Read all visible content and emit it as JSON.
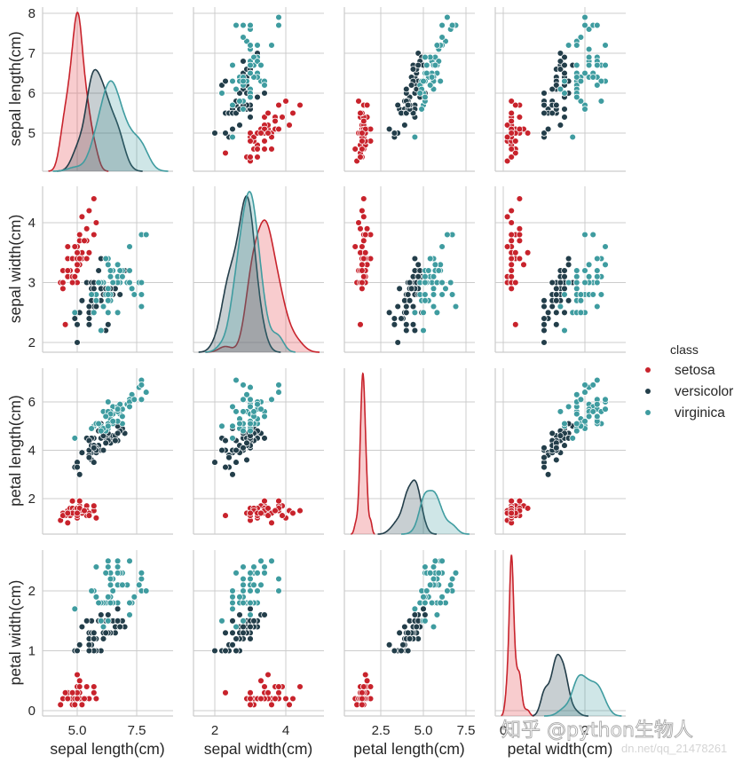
{
  "chart_data": {
    "type": "scatter",
    "subtype": "pairplot",
    "title": "",
    "variables": [
      "sepal length(cm)",
      "sepal width(cm)",
      "petal length(cm)",
      "petal width(cm)"
    ],
    "diagonal": "kde",
    "hue": "class",
    "legend": {
      "title": "class",
      "placement": "right",
      "entries": [
        {
          "name": "setosa",
          "color": "#c8232c"
        },
        {
          "name": "versicolor",
          "color": "#233e4a"
        },
        {
          "name": "virginica",
          "color": "#3f9ca0"
        }
      ]
    },
    "axes": [
      {
        "name": "sepal length(cm)",
        "range": [
          4.05,
          8.25
        ],
        "ticks_x": [
          5.0,
          7.5
        ],
        "tick_labels_x": [
          "5.0",
          "7.5"
        ],
        "ticks_y": [
          5,
          6,
          7,
          8
        ],
        "tick_labels_y": [
          "5",
          "6",
          "7",
          "8"
        ]
      },
      {
        "name": "sepal width(cm)",
        "range": [
          1.8,
          4.6
        ],
        "ticks_x": [
          2,
          4
        ],
        "tick_labels_x": [
          "2",
          "4"
        ],
        "ticks_y": [
          2,
          3,
          4
        ],
        "tick_labels_y": [
          "2",
          "3",
          "4"
        ]
      },
      {
        "name": "petal length(cm)",
        "range": [
          0.6,
          7.3
        ],
        "ticks_x": [
          2.5,
          5.0,
          7.5
        ],
        "tick_labels_x": [
          "2.5",
          "5.0",
          "7.5"
        ],
        "ticks_y": [
          2,
          4,
          6
        ],
        "tick_labels_y": [
          "2",
          "4",
          "6"
        ]
      },
      {
        "name": "petal width(cm)",
        "range": [
          -0.1,
          2.65
        ],
        "ticks_x": [
          0,
          2
        ],
        "tick_labels_x": [
          "0",
          "2"
        ],
        "ticks_y": [
          0,
          1,
          2
        ],
        "tick_labels_y": [
          "0",
          "1",
          "2"
        ]
      }
    ],
    "grid": true,
    "series": [
      {
        "name": "setosa",
        "points": [
          [
            5.1,
            3.5,
            1.4,
            0.2
          ],
          [
            4.9,
            3.0,
            1.4,
            0.2
          ],
          [
            4.7,
            3.2,
            1.3,
            0.2
          ],
          [
            4.6,
            3.1,
            1.5,
            0.2
          ],
          [
            5.0,
            3.6,
            1.4,
            0.2
          ],
          [
            5.4,
            3.9,
            1.7,
            0.4
          ],
          [
            4.6,
            3.4,
            1.4,
            0.3
          ],
          [
            5.0,
            3.4,
            1.5,
            0.2
          ],
          [
            4.4,
            2.9,
            1.4,
            0.2
          ],
          [
            4.9,
            3.1,
            1.5,
            0.1
          ],
          [
            5.4,
            3.7,
            1.5,
            0.2
          ],
          [
            4.8,
            3.4,
            1.6,
            0.2
          ],
          [
            4.8,
            3.0,
            1.4,
            0.1
          ],
          [
            4.3,
            3.0,
            1.1,
            0.1
          ],
          [
            5.8,
            4.0,
            1.2,
            0.2
          ],
          [
            5.7,
            4.4,
            1.5,
            0.4
          ],
          [
            5.4,
            3.9,
            1.3,
            0.4
          ],
          [
            5.1,
            3.5,
            1.4,
            0.3
          ],
          [
            5.7,
            3.8,
            1.7,
            0.3
          ],
          [
            5.1,
            3.8,
            1.5,
            0.3
          ],
          [
            5.4,
            3.4,
            1.7,
            0.2
          ],
          [
            5.1,
            3.7,
            1.5,
            0.4
          ],
          [
            4.6,
            3.6,
            1.0,
            0.2
          ],
          [
            5.1,
            3.3,
            1.7,
            0.5
          ],
          [
            4.8,
            3.4,
            1.9,
            0.2
          ],
          [
            5.0,
            3.0,
            1.6,
            0.2
          ],
          [
            5.0,
            3.4,
            1.6,
            0.4
          ],
          [
            5.2,
            3.5,
            1.5,
            0.2
          ],
          [
            5.2,
            3.4,
            1.4,
            0.2
          ],
          [
            4.7,
            3.2,
            1.6,
            0.2
          ],
          [
            4.8,
            3.1,
            1.6,
            0.2
          ],
          [
            5.4,
            3.4,
            1.5,
            0.4
          ],
          [
            5.2,
            4.1,
            1.5,
            0.1
          ],
          [
            5.5,
            4.2,
            1.4,
            0.2
          ],
          [
            4.9,
            3.1,
            1.5,
            0.2
          ],
          [
            5.0,
            3.2,
            1.2,
            0.2
          ],
          [
            5.5,
            3.5,
            1.3,
            0.2
          ],
          [
            4.9,
            3.6,
            1.4,
            0.1
          ],
          [
            4.4,
            3.0,
            1.3,
            0.2
          ],
          [
            5.1,
            3.4,
            1.5,
            0.2
          ],
          [
            5.0,
            3.5,
            1.3,
            0.3
          ],
          [
            4.5,
            2.3,
            1.3,
            0.3
          ],
          [
            4.4,
            3.2,
            1.3,
            0.2
          ],
          [
            5.0,
            3.5,
            1.6,
            0.6
          ],
          [
            5.1,
            3.8,
            1.9,
            0.4
          ],
          [
            4.8,
            3.0,
            1.4,
            0.3
          ],
          [
            5.1,
            3.8,
            1.6,
            0.2
          ],
          [
            4.6,
            3.2,
            1.4,
            0.2
          ],
          [
            5.3,
            3.7,
            1.5,
            0.2
          ],
          [
            5.0,
            3.3,
            1.4,
            0.2
          ]
        ]
      },
      {
        "name": "versicolor",
        "points": [
          [
            7.0,
            3.2,
            4.7,
            1.4
          ],
          [
            6.4,
            3.2,
            4.5,
            1.5
          ],
          [
            6.9,
            3.1,
            4.9,
            1.5
          ],
          [
            5.5,
            2.3,
            4.0,
            1.3
          ],
          [
            6.5,
            2.8,
            4.6,
            1.5
          ],
          [
            5.7,
            2.8,
            4.5,
            1.3
          ],
          [
            6.3,
            3.3,
            4.7,
            1.6
          ],
          [
            4.9,
            2.4,
            3.3,
            1.0
          ],
          [
            6.6,
            2.9,
            4.6,
            1.3
          ],
          [
            5.2,
            2.7,
            3.9,
            1.4
          ],
          [
            5.0,
            2.0,
            3.5,
            1.0
          ],
          [
            5.9,
            3.0,
            4.2,
            1.5
          ],
          [
            6.0,
            2.2,
            4.0,
            1.0
          ],
          [
            6.1,
            2.9,
            4.7,
            1.4
          ],
          [
            5.6,
            2.9,
            3.6,
            1.3
          ],
          [
            6.7,
            3.1,
            4.4,
            1.4
          ],
          [
            5.6,
            3.0,
            4.5,
            1.5
          ],
          [
            5.8,
            2.7,
            4.1,
            1.0
          ],
          [
            6.2,
            2.2,
            4.5,
            1.5
          ],
          [
            5.6,
            2.5,
            3.9,
            1.1
          ],
          [
            5.9,
            3.2,
            4.8,
            1.8
          ],
          [
            6.1,
            2.8,
            4.0,
            1.3
          ],
          [
            6.3,
            2.5,
            4.9,
            1.5
          ],
          [
            6.1,
            2.8,
            4.7,
            1.2
          ],
          [
            6.4,
            2.9,
            4.3,
            1.3
          ],
          [
            6.6,
            3.0,
            4.4,
            1.4
          ],
          [
            6.8,
            2.8,
            4.8,
            1.4
          ],
          [
            6.7,
            3.0,
            5.0,
            1.7
          ],
          [
            6.0,
            2.9,
            4.5,
            1.5
          ],
          [
            5.7,
            2.6,
            3.5,
            1.0
          ],
          [
            5.5,
            2.4,
            3.8,
            1.1
          ],
          [
            5.5,
            2.4,
            3.7,
            1.0
          ],
          [
            5.8,
            2.7,
            3.9,
            1.2
          ],
          [
            6.0,
            2.7,
            5.1,
            1.6
          ],
          [
            5.4,
            3.0,
            4.5,
            1.5
          ],
          [
            6.0,
            3.4,
            4.5,
            1.6
          ],
          [
            6.7,
            3.1,
            4.7,
            1.5
          ],
          [
            6.3,
            2.3,
            4.4,
            1.3
          ],
          [
            5.6,
            3.0,
            4.1,
            1.3
          ],
          [
            5.5,
            2.5,
            4.0,
            1.3
          ],
          [
            5.5,
            2.6,
            4.4,
            1.2
          ],
          [
            6.1,
            3.0,
            4.6,
            1.4
          ],
          [
            5.8,
            2.6,
            4.0,
            1.2
          ],
          [
            5.0,
            2.3,
            3.3,
            1.0
          ],
          [
            5.6,
            2.7,
            4.2,
            1.3
          ],
          [
            5.7,
            3.0,
            4.2,
            1.2
          ],
          [
            5.7,
            2.9,
            4.2,
            1.3
          ],
          [
            6.2,
            2.9,
            4.3,
            1.3
          ],
          [
            5.1,
            2.5,
            3.0,
            1.1
          ],
          [
            5.7,
            2.8,
            4.1,
            1.3
          ]
        ]
      },
      {
        "name": "virginica",
        "points": [
          [
            6.3,
            3.3,
            6.0,
            2.5
          ],
          [
            5.8,
            2.7,
            5.1,
            1.9
          ],
          [
            7.1,
            3.0,
            5.9,
            2.1
          ],
          [
            6.3,
            2.9,
            5.6,
            1.8
          ],
          [
            6.5,
            3.0,
            5.8,
            2.2
          ],
          [
            7.6,
            3.0,
            6.6,
            2.1
          ],
          [
            4.9,
            2.5,
            4.5,
            1.7
          ],
          [
            7.3,
            2.9,
            6.3,
            1.8
          ],
          [
            6.7,
            2.5,
            5.8,
            1.8
          ],
          [
            7.2,
            3.6,
            6.1,
            2.5
          ],
          [
            6.5,
            3.2,
            5.1,
            2.0
          ],
          [
            6.4,
            2.7,
            5.3,
            1.9
          ],
          [
            6.8,
            3.0,
            5.5,
            2.1
          ],
          [
            5.7,
            2.5,
            5.0,
            2.0
          ],
          [
            5.8,
            2.8,
            5.1,
            2.4
          ],
          [
            6.4,
            3.2,
            5.3,
            2.3
          ],
          [
            6.5,
            3.0,
            5.5,
            1.8
          ],
          [
            7.7,
            3.8,
            6.7,
            2.2
          ],
          [
            7.7,
            2.6,
            6.9,
            2.3
          ],
          [
            6.0,
            2.2,
            5.0,
            1.5
          ],
          [
            6.9,
            3.2,
            5.7,
            2.3
          ],
          [
            5.6,
            2.8,
            4.9,
            2.0
          ],
          [
            7.7,
            2.8,
            6.7,
            2.0
          ],
          [
            6.3,
            2.7,
            4.9,
            1.8
          ],
          [
            6.7,
            3.3,
            5.7,
            2.1
          ],
          [
            7.2,
            3.2,
            6.0,
            1.8
          ],
          [
            6.2,
            2.8,
            4.8,
            1.8
          ],
          [
            6.1,
            3.0,
            4.9,
            1.8
          ],
          [
            6.4,
            2.8,
            5.6,
            2.1
          ],
          [
            7.2,
            3.0,
            5.8,
            1.6
          ],
          [
            7.4,
            2.8,
            6.1,
            1.9
          ],
          [
            7.9,
            3.8,
            6.4,
            2.0
          ],
          [
            6.4,
            2.8,
            5.6,
            2.2
          ],
          [
            6.3,
            2.8,
            5.1,
            1.5
          ],
          [
            6.1,
            2.6,
            5.6,
            1.4
          ],
          [
            7.7,
            3.0,
            6.1,
            2.3
          ],
          [
            6.3,
            3.4,
            5.6,
            2.4
          ],
          [
            6.4,
            3.1,
            5.5,
            1.8
          ],
          [
            6.0,
            3.0,
            4.8,
            1.8
          ],
          [
            6.9,
            3.1,
            5.4,
            2.1
          ],
          [
            6.7,
            3.1,
            5.6,
            2.4
          ],
          [
            6.9,
            3.1,
            5.1,
            2.3
          ],
          [
            5.8,
            2.7,
            5.1,
            1.9
          ],
          [
            6.8,
            3.2,
            5.9,
            2.3
          ],
          [
            6.7,
            3.3,
            5.7,
            2.5
          ],
          [
            6.7,
            3.0,
            5.2,
            2.3
          ],
          [
            6.3,
            2.5,
            5.0,
            1.9
          ],
          [
            6.5,
            3.0,
            5.2,
            2.0
          ],
          [
            6.2,
            3.4,
            5.4,
            2.3
          ],
          [
            5.9,
            3.0,
            5.1,
            1.8
          ]
        ]
      }
    ]
  },
  "watermark": {
    "main": "知乎 @python生物人",
    "sub": "dn.net/qq_21478261"
  }
}
